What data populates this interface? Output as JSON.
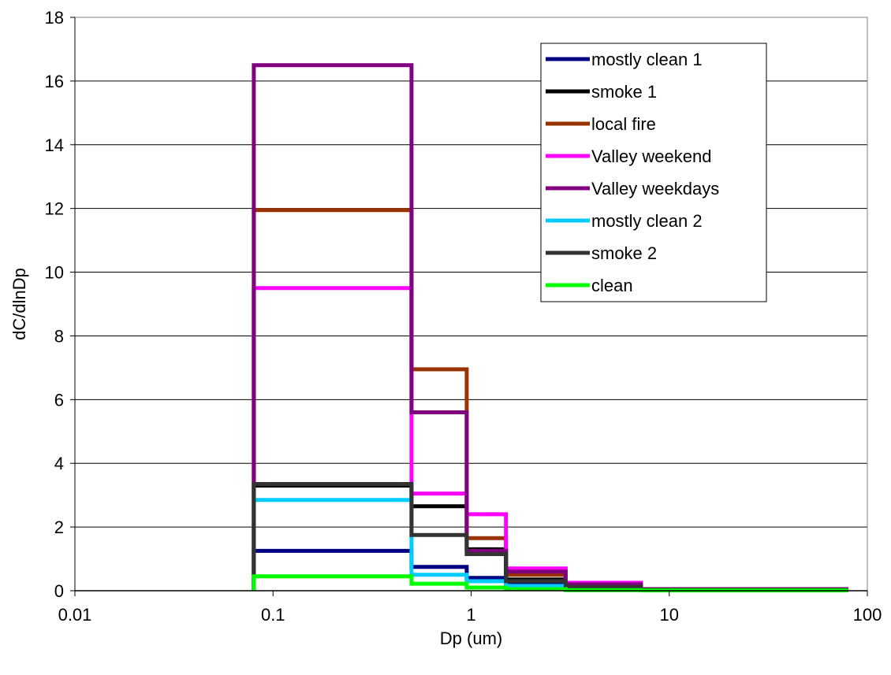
{
  "chart_data": {
    "type": "line",
    "step": true,
    "title": "",
    "xlabel": "Dp (um)",
    "ylabel": "dC/dlnDp",
    "xscale": "log",
    "xlim": [
      0.01,
      100
    ],
    "ylim": [
      0,
      18
    ],
    "xticks": [
      "0.01",
      "0.1",
      "1",
      "10",
      "100"
    ],
    "yticks": [
      "0",
      "2",
      "4",
      "6",
      "8",
      "10",
      "12",
      "14",
      "16",
      "18"
    ],
    "grid": "horizontal",
    "legend_position": "top-right",
    "x_edges": [
      0.08,
      0.5,
      0.95,
      1.5,
      3.0,
      7.2,
      80
    ],
    "series": [
      {
        "name": "mostly clean 1",
        "color": "#000080",
        "values": [
          1.25,
          0.75,
          0.4,
          0.2,
          0.08,
          0.03
        ]
      },
      {
        "name": "smoke 1",
        "color": "#000000",
        "values": [
          3.3,
          2.65,
          1.3,
          0.35,
          0.15,
          0.05
        ]
      },
      {
        "name": "local fire",
        "color": "#993300",
        "values": [
          11.95,
          6.95,
          1.65,
          0.5,
          0.2,
          0.05
        ]
      },
      {
        "name": "Valley weekend",
        "color": "#ff00ff",
        "values": [
          9.5,
          3.05,
          2.4,
          0.7,
          0.25,
          0.05
        ]
      },
      {
        "name": "Valley weekdays",
        "color": "#800080",
        "values": [
          16.5,
          5.6,
          1.25,
          0.6,
          0.2,
          0.05
        ]
      },
      {
        "name": "mostly clean 2",
        "color": "#00ccff",
        "values": [
          2.85,
          0.5,
          0.3,
          0.15,
          0.06,
          0.02
        ]
      },
      {
        "name": "smoke 2",
        "color": "#333333",
        "values": [
          3.35,
          1.75,
          1.15,
          0.3,
          0.12,
          0.03
        ]
      },
      {
        "name": "clean",
        "color": "#00ff00",
        "values": [
          0.45,
          0.22,
          0.1,
          0.05,
          0.02,
          0.01
        ]
      }
    ]
  }
}
